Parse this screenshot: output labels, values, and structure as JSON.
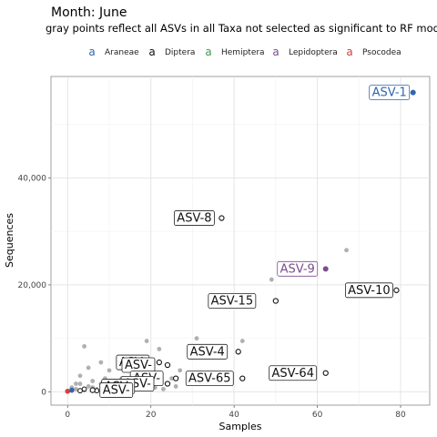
{
  "chart_data": {
    "type": "scatter",
    "title": "Month: June",
    "subtitle": "gray points reflect all ASVs in all Taxa not selected as significant to RF model",
    "xlabel": "Samples",
    "ylabel": "Sequences",
    "xlim": [
      -4,
      87
    ],
    "ylim": [
      -2500,
      59000
    ],
    "x_ticks": [
      0,
      20,
      40,
      60,
      80
    ],
    "y_ticks": [
      0,
      20000,
      40000
    ],
    "y_tick_labels": [
      "0",
      "20,000",
      "40,000"
    ],
    "grid": true,
    "legend_position": "top",
    "legend": [
      {
        "name": "Araneae",
        "color": "#2f66b0"
      },
      {
        "name": "Diptera",
        "color": "#111111"
      },
      {
        "name": "Hemiptera",
        "color": "#3d9a50"
      },
      {
        "name": "Lepidoptera",
        "color": "#7b4e8e"
      },
      {
        "name": "Psocodea",
        "color": "#d04040"
      }
    ],
    "background_points": [
      [
        67,
        26500
      ],
      [
        49,
        21000
      ],
      [
        42,
        9500
      ],
      [
        31,
        10000
      ],
      [
        19,
        9500
      ],
      [
        22,
        8000
      ],
      [
        4,
        8500
      ],
      [
        8,
        5500
      ],
      [
        10,
        4000
      ],
      [
        14,
        6000
      ],
      [
        16,
        4500
      ],
      [
        19,
        3500
      ],
      [
        25,
        2500
      ],
      [
        27,
        4000
      ],
      [
        29,
        1500
      ],
      [
        33,
        3000
      ],
      [
        3,
        3000
      ],
      [
        5,
        4500
      ],
      [
        6,
        2000
      ],
      [
        9,
        2500
      ],
      [
        11,
        1500
      ],
      [
        13,
        2500
      ],
      [
        15,
        1000
      ],
      [
        17,
        2000
      ],
      [
        20,
        2500
      ],
      [
        22,
        3000
      ],
      [
        24,
        1500
      ],
      [
        26,
        1000
      ],
      [
        2,
        500
      ],
      [
        3,
        1500
      ],
      [
        5,
        1000
      ],
      [
        7,
        500
      ],
      [
        8,
        1500
      ],
      [
        10,
        500
      ],
      [
        12,
        1000
      ],
      [
        14,
        500
      ],
      [
        16,
        500
      ],
      [
        18,
        1500
      ],
      [
        21,
        800
      ],
      [
        23,
        500
      ],
      [
        1,
        200
      ],
      [
        2,
        1500
      ],
      [
        4,
        300
      ],
      [
        6,
        800
      ],
      [
        9,
        300
      ],
      [
        11,
        700
      ],
      [
        13,
        300
      ],
      [
        1,
        800
      ],
      [
        0,
        100
      ]
    ],
    "asv_points": [
      {
        "label": "ASV-1",
        "taxon": "Araneae",
        "x": 83,
        "y": 56000
      },
      {
        "label": "ASV-8",
        "taxon": "Diptera",
        "x": 37,
        "y": 32500
      },
      {
        "label": "ASV-9",
        "taxon": "Lepidoptera",
        "x": 62,
        "y": 23000
      },
      {
        "label": "ASV-10",
        "taxon": "Diptera",
        "x": 79,
        "y": 19000
      },
      {
        "label": "ASV-15",
        "taxon": "Diptera",
        "x": 50,
        "y": 17000
      },
      {
        "label": "ASV-4",
        "taxon": "Diptera",
        "x": 41,
        "y": 7500
      },
      {
        "label": "ASV-64",
        "taxon": "Diptera",
        "x": 62,
        "y": 3500
      },
      {
        "label": "ASV-65",
        "taxon": "Diptera",
        "x": 42,
        "y": 2500
      },
      {
        "label": "ASV-",
        "taxon": "Diptera",
        "x": 22,
        "y": 5500
      },
      {
        "label": "ASV-",
        "taxon": "Diptera",
        "x": 24,
        "y": 5000
      },
      {
        "label": "ASV-",
        "taxon": "Diptera",
        "x": 26,
        "y": 2500
      },
      {
        "label": "ASV-",
        "taxon": "Diptera",
        "x": 24,
        "y": 1500
      },
      {
        "label": "ASV-",
        "taxon": "Diptera",
        "x": 20,
        "y": 1000
      },
      {
        "label": "ASV-",
        "taxon": "Diptera",
        "x": 6,
        "y": 300
      }
    ],
    "unlabeled_taxa_points": [
      {
        "taxon": "Psocodea",
        "x": 0,
        "y": 100
      },
      {
        "taxon": "Araneae",
        "x": 1,
        "y": 300
      },
      {
        "taxon": "Diptera",
        "x": 3,
        "y": 200
      },
      {
        "taxon": "Diptera",
        "x": 4,
        "y": 500
      },
      {
        "taxon": "Diptera",
        "x": 7,
        "y": 200
      }
    ]
  }
}
